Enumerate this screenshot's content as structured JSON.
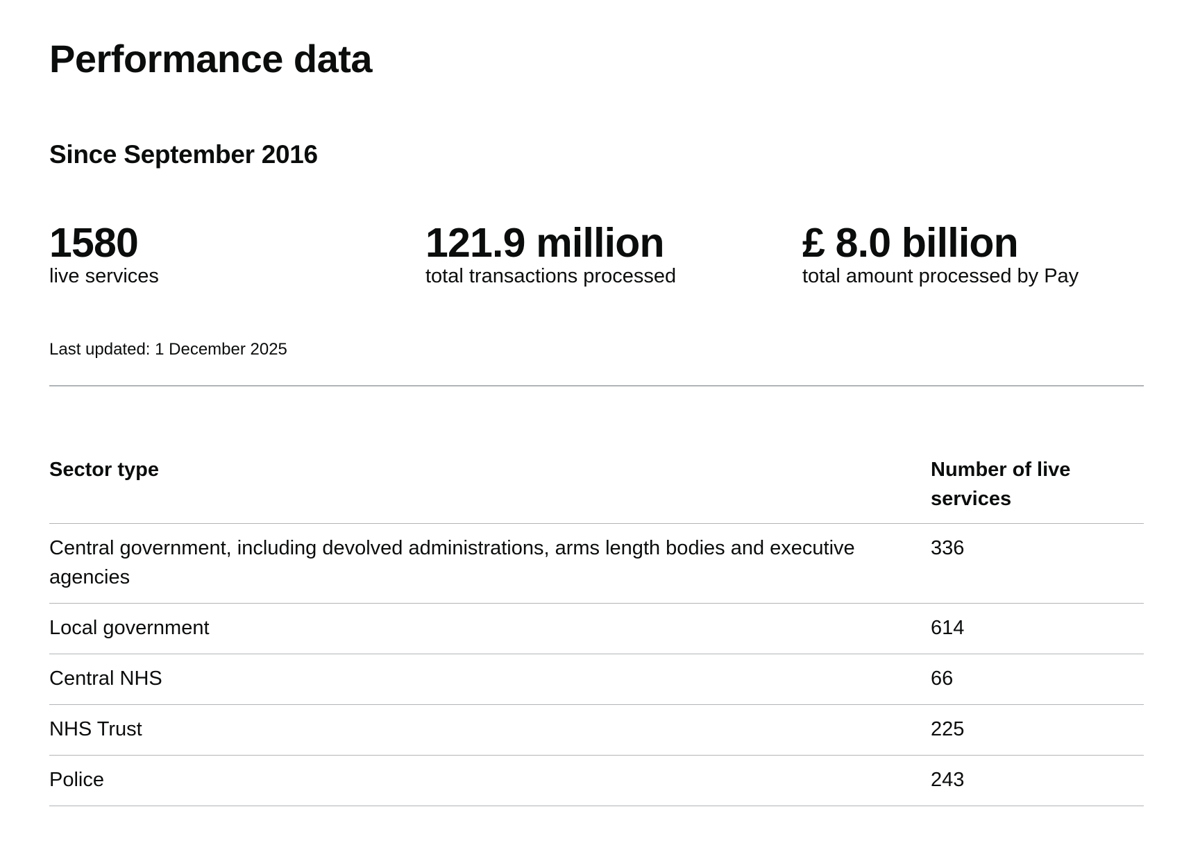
{
  "page_title": "Performance data",
  "subtitle": "Since September 2016",
  "stats": [
    {
      "value": "1580",
      "label": "live services"
    },
    {
      "value": "121.9 million",
      "label": "total transactions processed"
    },
    {
      "value": "£ 8.0 billion",
      "label": "total amount processed by Pay"
    }
  ],
  "last_updated": "Last updated: 1 December 2025",
  "table": {
    "headers": [
      "Sector type",
      "Number of live services"
    ],
    "rows": [
      [
        "Central government, including devolved administrations, arms length bodies and executive agencies",
        "336"
      ],
      [
        "Local government",
        "614"
      ],
      [
        "Central NHS",
        "66"
      ],
      [
        "NHS Trust",
        "225"
      ],
      [
        "Police",
        "243"
      ]
    ]
  }
}
